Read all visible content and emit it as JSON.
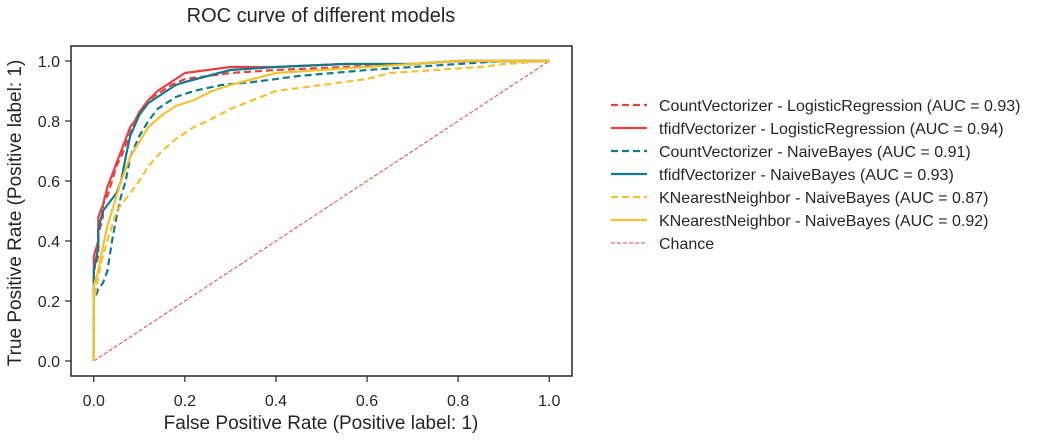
{
  "chart_data": {
    "type": "line",
    "title": "ROC curve of different models",
    "xlabel": "False Positive Rate (Positive label: 1)",
    "ylabel": "True Positive Rate (Positive label: 1)",
    "xlim": [
      -0.05,
      1.05
    ],
    "ylim": [
      -0.05,
      1.05
    ],
    "xticks": [
      0.0,
      0.2,
      0.4,
      0.6,
      0.8,
      1.0
    ],
    "yticks": [
      0.0,
      0.2,
      0.4,
      0.6,
      0.8,
      1.0
    ],
    "xtick_labels": [
      "0.0",
      "0.2",
      "0.4",
      "0.6",
      "0.8",
      "1.0"
    ],
    "ytick_labels": [
      "0.0",
      "0.2",
      "0.4",
      "0.6",
      "0.8",
      "1.0"
    ],
    "grid": false,
    "legend_position": "right, outside plot",
    "series": [
      {
        "name": "CountVectorizer - LogisticRegression (AUC = 0.93)",
        "color": "#e84040",
        "dash": "dashed",
        "x": [
          0,
          0,
          0.01,
          0.01,
          0.02,
          0.02,
          0.03,
          0.04,
          0.05,
          0.06,
          0.07,
          0.08,
          0.09,
          0.1,
          0.11,
          0.13,
          0.15,
          0.17,
          0.2,
          0.25,
          0.3,
          0.4,
          0.55,
          0.7,
          0.8,
          0.9,
          1.0
        ],
        "y": [
          0,
          0.3,
          0.35,
          0.42,
          0.48,
          0.52,
          0.55,
          0.6,
          0.65,
          0.68,
          0.72,
          0.76,
          0.8,
          0.82,
          0.85,
          0.88,
          0.9,
          0.92,
          0.94,
          0.95,
          0.96,
          0.97,
          0.98,
          0.99,
          1.0,
          1.0,
          1.0
        ]
      },
      {
        "name": "tfidfVectorizer - LogisticRegression (AUC = 0.94)",
        "color": "#e84040",
        "dash": "solid",
        "x": [
          0,
          0,
          0.01,
          0.01,
          0.02,
          0.03,
          0.04,
          0.05,
          0.06,
          0.07,
          0.08,
          0.09,
          0.1,
          0.12,
          0.14,
          0.16,
          0.18,
          0.2,
          0.25,
          0.3,
          0.4,
          0.55,
          0.7,
          0.8,
          0.9,
          1.0
        ],
        "y": [
          0,
          0.35,
          0.4,
          0.48,
          0.52,
          0.58,
          0.62,
          0.66,
          0.7,
          0.74,
          0.78,
          0.8,
          0.83,
          0.87,
          0.9,
          0.92,
          0.94,
          0.96,
          0.97,
          0.98,
          0.98,
          0.99,
          0.99,
          1.0,
          1.0,
          1.0
        ]
      },
      {
        "name": "CountVectorizer - NaiveBayes (AUC = 0.91)",
        "color": "#117a8b",
        "dash": "dashed",
        "x": [
          0,
          0,
          0.01,
          0.02,
          0.03,
          0.04,
          0.05,
          0.06,
          0.07,
          0.08,
          0.1,
          0.12,
          0.14,
          0.16,
          0.18,
          0.22,
          0.28,
          0.35,
          0.45,
          0.6,
          0.7,
          0.8,
          0.9,
          1.0
        ],
        "y": [
          0,
          0.2,
          0.24,
          0.26,
          0.3,
          0.4,
          0.48,
          0.55,
          0.6,
          0.68,
          0.75,
          0.8,
          0.84,
          0.86,
          0.88,
          0.9,
          0.92,
          0.93,
          0.95,
          0.97,
          0.98,
          0.99,
          1.0,
          1.0
        ]
      },
      {
        "name": "tfidfVectorizer - NaiveBayes (AUC = 0.93)",
        "color": "#117a8b",
        "dash": "solid",
        "x": [
          0,
          0,
          0.01,
          0.01,
          0.02,
          0.03,
          0.04,
          0.05,
          0.06,
          0.07,
          0.08,
          0.1,
          0.12,
          0.14,
          0.16,
          0.18,
          0.2,
          0.25,
          0.3,
          0.4,
          0.55,
          0.7,
          0.8,
          0.9,
          1.0
        ],
        "y": [
          0,
          0.3,
          0.38,
          0.44,
          0.5,
          0.52,
          0.54,
          0.56,
          0.6,
          0.68,
          0.75,
          0.82,
          0.86,
          0.88,
          0.9,
          0.92,
          0.93,
          0.95,
          0.97,
          0.98,
          0.99,
          0.99,
          1.0,
          1.0,
          1.0
        ]
      },
      {
        "name": "KNearestNeighbor - NaiveBayes (AUC = 0.87)",
        "color": "#f2c230",
        "dash": "dashed",
        "x": [
          0,
          0,
          0.01,
          0.02,
          0.03,
          0.04,
          0.05,
          0.06,
          0.08,
          0.1,
          0.12,
          0.15,
          0.18,
          0.22,
          0.25,
          0.3,
          0.35,
          0.4,
          0.5,
          0.6,
          0.65,
          0.75,
          0.85,
          0.9,
          1.0
        ],
        "y": [
          0,
          0.2,
          0.28,
          0.35,
          0.4,
          0.45,
          0.5,
          0.52,
          0.56,
          0.6,
          0.65,
          0.7,
          0.74,
          0.78,
          0.8,
          0.84,
          0.87,
          0.9,
          0.92,
          0.94,
          0.96,
          0.97,
          0.98,
          0.99,
          1.0
        ]
      },
      {
        "name": "KNearestNeighbor - NaiveBayes (AUC = 0.92)",
        "color": "#f2c230",
        "dash": "solid",
        "x": [
          0,
          0,
          0.01,
          0.02,
          0.03,
          0.04,
          0.05,
          0.06,
          0.07,
          0.08,
          0.1,
          0.12,
          0.15,
          0.18,
          0.22,
          0.26,
          0.3,
          0.35,
          0.4,
          0.5,
          0.6,
          0.7,
          0.8,
          0.9,
          1.0
        ],
        "y": [
          0,
          0.25,
          0.3,
          0.38,
          0.45,
          0.5,
          0.55,
          0.6,
          0.64,
          0.68,
          0.73,
          0.78,
          0.82,
          0.85,
          0.87,
          0.9,
          0.92,
          0.94,
          0.96,
          0.97,
          0.98,
          0.99,
          1.0,
          1.0,
          1.0
        ]
      },
      {
        "name": "Chance",
        "color": "#e84040",
        "dash": "thin-dashed",
        "x": [
          0,
          1
        ],
        "y": [
          0,
          1
        ]
      }
    ]
  }
}
